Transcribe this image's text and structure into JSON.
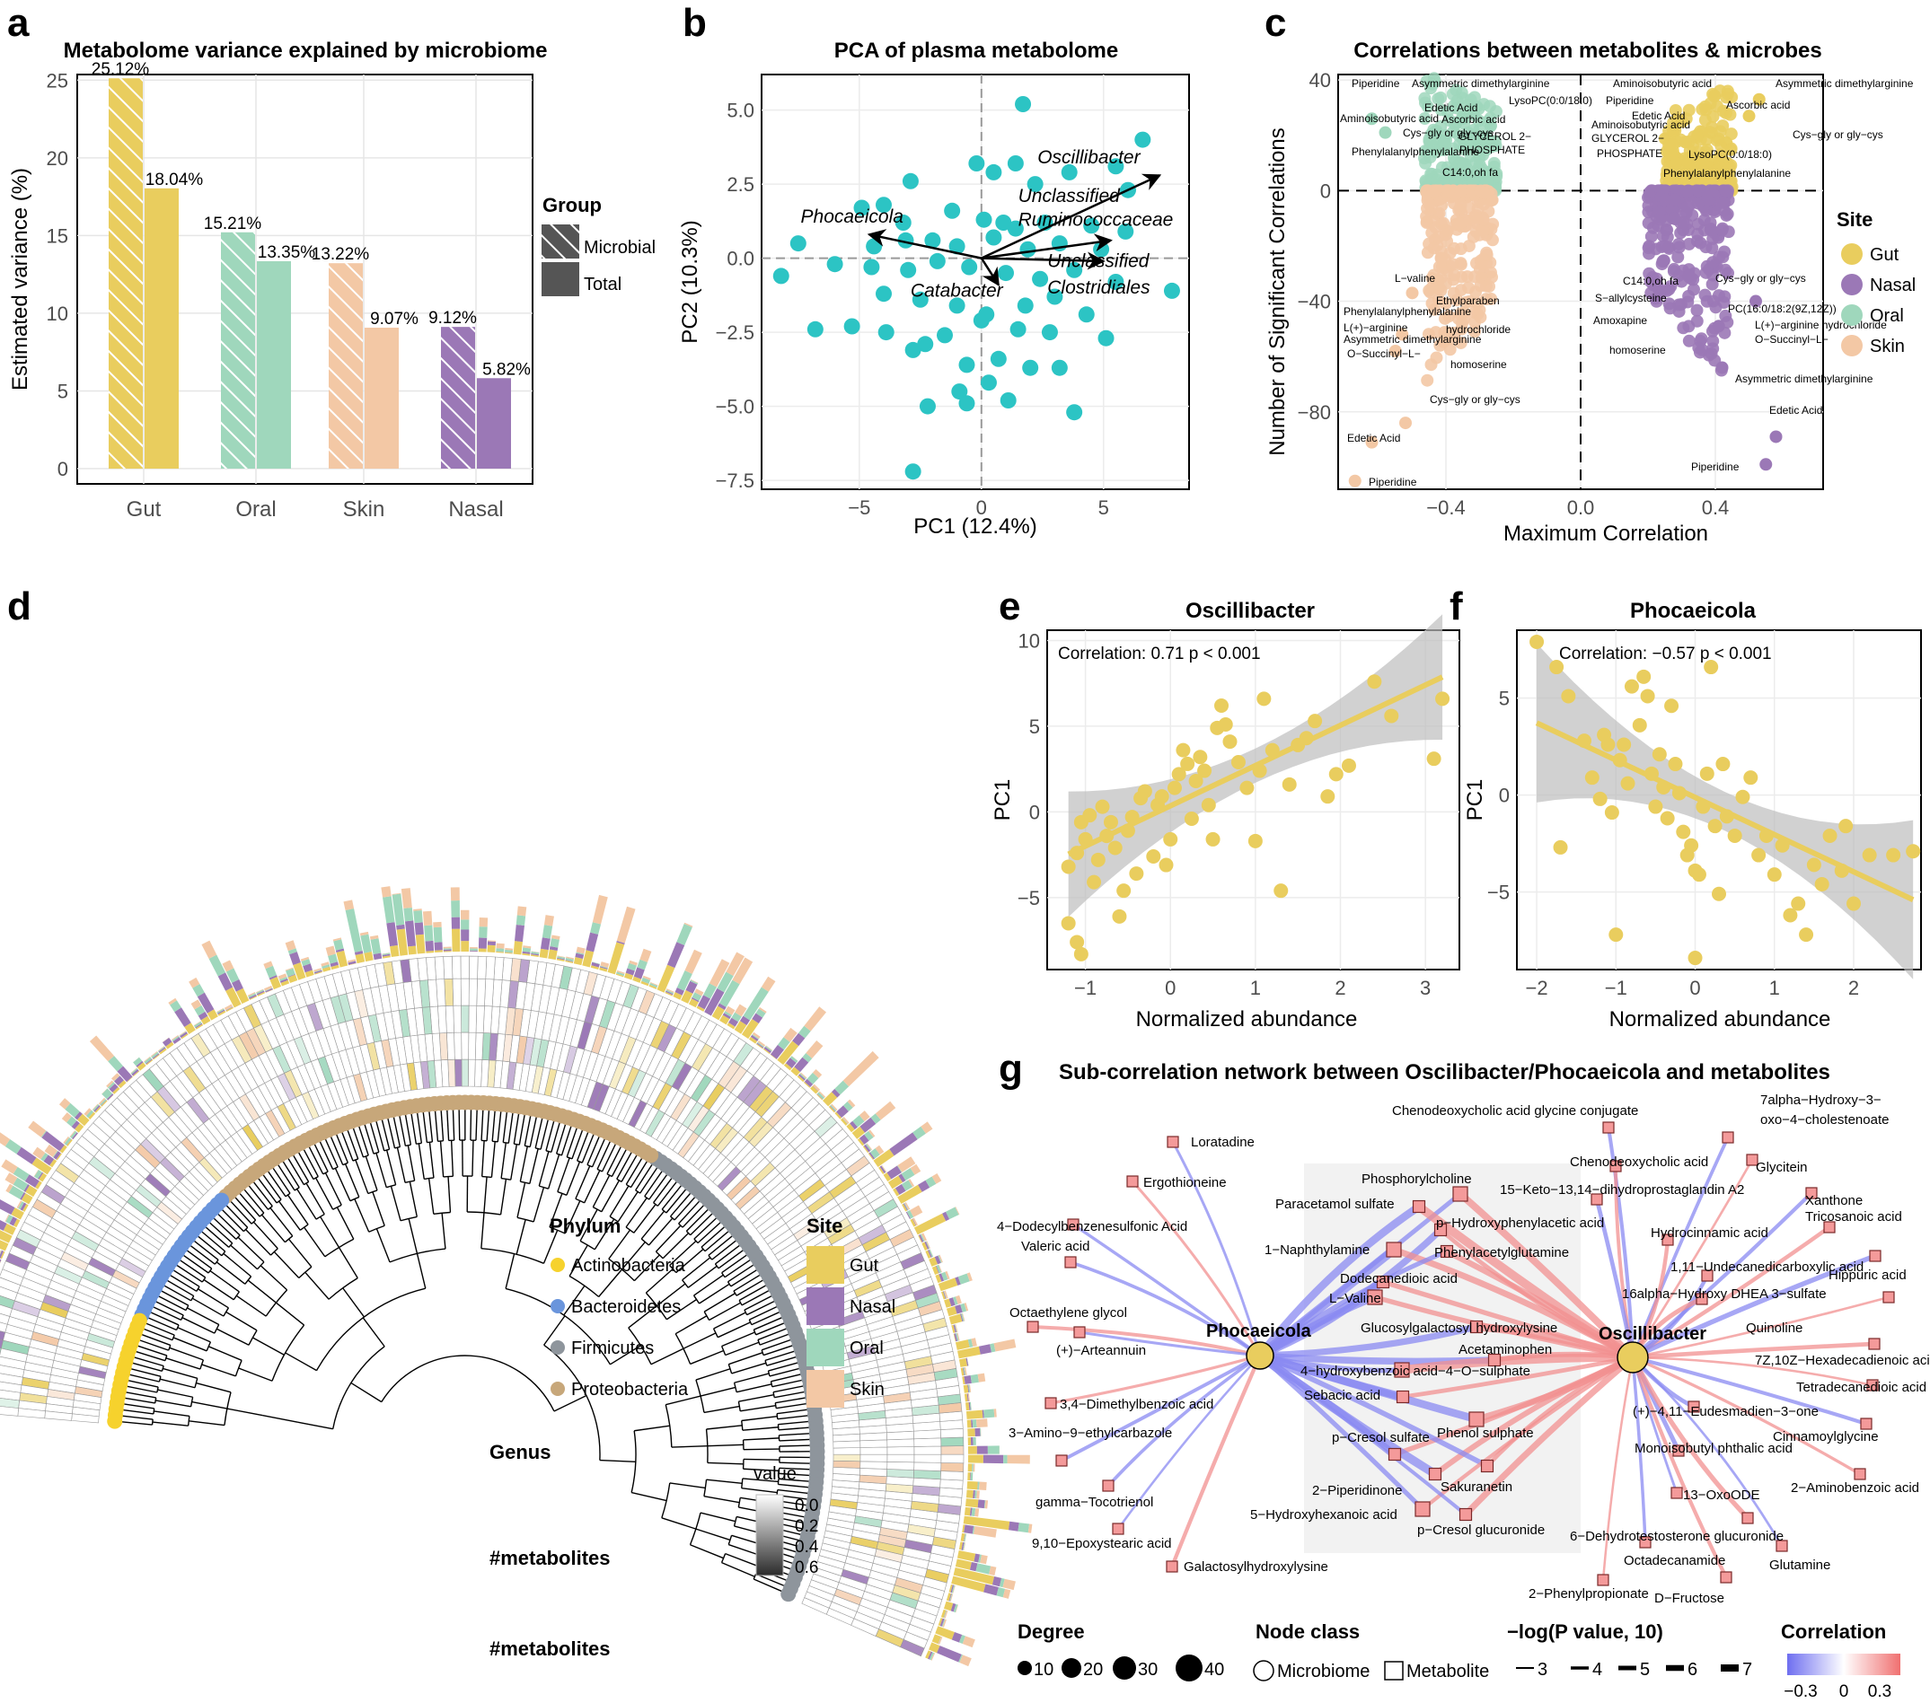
{
  "panels": {
    "a": "a",
    "b": "b",
    "c": "c",
    "d": "d",
    "e": "e",
    "f": "f",
    "g": "g"
  },
  "colors": {
    "gut": "#E9CD5E",
    "nasal": "#9B78B6",
    "oral": "#9FD7BC",
    "skin": "#F3C8A5",
    "teal": "#2CC4C4",
    "actino": "#F6D22D",
    "bacteroidetes": "#6A95DC",
    "firmicutes": "#8E959C",
    "proteobacteria": "#C7A77A"
  },
  "chart_data": [
    {
      "id": "a",
      "type": "bar",
      "title": "Metabolome variance explained by microbiome",
      "ylabel": "Estimated variance (%)",
      "xlabel": "",
      "ylim": [
        0,
        26
      ],
      "yticks": [
        "0",
        "5",
        "10",
        "15",
        "20",
        "25"
      ],
      "categories": [
        "Gut",
        "Oral",
        "Skin",
        "Nasal"
      ],
      "series": [
        {
          "name": "Microbial",
          "values": [
            25.12,
            15.21,
            13.22,
            9.12
          ],
          "labels": [
            "25.12%",
            "15.21%",
            "13.22%",
            "9.12%"
          ]
        },
        {
          "name": "Total",
          "values": [
            18.04,
            13.35,
            9.07,
            5.82
          ],
          "labels": [
            "18.04%",
            "13.35%",
            "9.07%",
            "5.82%"
          ]
        }
      ],
      "legend_title": "Group",
      "legend": [
        "Microbial",
        "Total"
      ]
    },
    {
      "id": "b",
      "type": "scatter",
      "title": "PCA of plasma metabolome",
      "xlabel": "PC1 (12.4%)",
      "ylabel": "PC2 (10.3%)",
      "xlim": [
        -9,
        8.5
      ],
      "ylim": [
        -7.8,
        6.2
      ],
      "xticks": [
        "−5",
        "0",
        "5"
      ],
      "yticks": [
        "5.0",
        "2.5",
        "0.0",
        "−2.5",
        "−5.0",
        "−7.5"
      ],
      "points": [
        [
          1.7,
          5.2
        ],
        [
          -0.2,
          3.2
        ],
        [
          0.5,
          2.9
        ],
        [
          1.4,
          3.2
        ],
        [
          2.2,
          2.5
        ],
        [
          3.6,
          2.9
        ],
        [
          5.5,
          3.1
        ],
        [
          6.6,
          4.0
        ],
        [
          6.0,
          2.3
        ],
        [
          -2.9,
          2.6
        ],
        [
          -4.0,
          1.8
        ],
        [
          -4.9,
          1.7
        ],
        [
          -3.2,
          1.2
        ],
        [
          -1.2,
          1.6
        ],
        [
          0.1,
          1.3
        ],
        [
          0.9,
          1.2
        ],
        [
          1.4,
          1.0
        ],
        [
          2.6,
          1.2
        ],
        [
          4.5,
          1.1
        ],
        [
          5.9,
          0.9
        ],
        [
          -7.5,
          0.5
        ],
        [
          -4.4,
          0.4
        ],
        [
          -3.1,
          0.6
        ],
        [
          -2.0,
          0.6
        ],
        [
          -1.0,
          0.4
        ],
        [
          0.5,
          0.7
        ],
        [
          1.9,
          0.3
        ],
        [
          3.2,
          0.5
        ],
        [
          4.9,
          0.3
        ],
        [
          -8.2,
          -0.6
        ],
        [
          -6.0,
          -0.2
        ],
        [
          -4.5,
          -0.3
        ],
        [
          -3.0,
          -0.4
        ],
        [
          -1.8,
          -0.1
        ],
        [
          -0.5,
          -0.3
        ],
        [
          1.0,
          -0.5
        ],
        [
          2.4,
          -0.7
        ],
        [
          3.8,
          -0.4
        ],
        [
          5.5,
          -0.8
        ],
        [
          7.8,
          -1.1
        ],
        [
          -4.0,
          -1.2
        ],
        [
          -2.5,
          -1.4
        ],
        [
          -1.0,
          -1.6
        ],
        [
          0.2,
          -1.9
        ],
        [
          1.8,
          -1.6
        ],
        [
          3.0,
          -1.3
        ],
        [
          4.3,
          -1.9
        ],
        [
          -6.8,
          -2.4
        ],
        [
          -5.3,
          -2.3
        ],
        [
          -3.9,
          -2.5
        ],
        [
          -2.3,
          -2.9
        ],
        [
          -1.5,
          -2.6
        ],
        [
          0.0,
          -2.1
        ],
        [
          1.5,
          -2.4
        ],
        [
          2.8,
          -2.5
        ],
        [
          5.1,
          -2.7
        ],
        [
          -2.8,
          -3.1
        ],
        [
          -0.6,
          -3.6
        ],
        [
          0.7,
          -3.4
        ],
        [
          2.0,
          -3.7
        ],
        [
          -0.9,
          -4.5
        ],
        [
          0.3,
          -4.2
        ],
        [
          1.1,
          -4.8
        ],
        [
          -0.6,
          -4.9
        ],
        [
          -2.2,
          -5.0
        ],
        [
          3.8,
          -5.2
        ],
        [
          -2.8,
          -7.2
        ],
        [
          3.2,
          -3.7
        ]
      ],
      "arrows": [
        {
          "name": "Oscillibacter",
          "end": [
            7.3,
            2.8
          ],
          "label_at": [
            6.7,
            3.1
          ]
        },
        {
          "name": "Phocaeicola",
          "end": [
            -4.6,
            0.8
          ],
          "label_at": [
            -7.2,
            1.2
          ]
        },
        {
          "name": "Unclassified Ruminococcaceae",
          "end": [
            5.3,
            0.6
          ],
          "label_at": [
            1.4,
            1.6
          ]
        },
        {
          "name": "Unclassified Clostridiales",
          "end": [
            5.0,
            -0.1
          ],
          "label_at": [
            2.6,
            -0.4
          ]
        },
        {
          "name": "Catabacter",
          "end": [
            0.7,
            -0.9
          ],
          "label_at": [
            -3.0,
            -1.2
          ]
        }
      ],
      "arrow_labels": {
        "osc": "Oscillibacter",
        "pho": "Phocaeicola",
        "rum1": "Unclassified",
        "rum2": "Ruminococcaceae",
        "clo1": "Unclassified",
        "clo2": "Clostridiales",
        "cat": "Catabacter"
      }
    },
    {
      "id": "c",
      "type": "scatter",
      "title": "Correlations between metabolites & microbes",
      "xlabel": "Maximum Correlation",
      "ylabel": "Number of Significant Correlations",
      "xlim": [
        -0.72,
        0.72
      ],
      "ylim": [
        -108,
        42
      ],
      "xticks": [
        "−0.4",
        "0.0",
        "0.4"
      ],
      "yticks": [
        "40",
        "0",
        "−40",
        "−80"
      ],
      "legend_title": "Site",
      "legend": [
        "Gut",
        "Nasal",
        "Oral",
        "Skin"
      ],
      "labels": [
        "Piperidine",
        "Asymmetric dimethylarginine",
        "LysoPC(0:0/18:0)",
        "Edetic Acid",
        "Aminoisobutyric acid",
        "Ascorbic acid",
        "Cys−gly or gly−cys",
        "GLYCEROL 2−",
        "PHOSPHATE",
        "Phenylalanylphenylalanine",
        "C14:0,oh fa",
        "L−valine",
        "Ethylparaben",
        "Phenylalanylphenylalanine",
        "L(+)−arginine",
        "hydrochloride",
        "Asymmetric dimethylarginine",
        "O−Succinyl−L−",
        "homoserine",
        "Cys−gly or gly−cys",
        "Edetic Acid",
        "Piperidine",
        "Aminoisobutyric acid",
        "Asymmetric dimethylarginine",
        "Piperidine",
        "Ascorbic acid",
        "Edetic Acid",
        "Cys−gly or gly−cys",
        "Aminoisobutyric acid",
        "GLYCEROL 2−",
        "PHOSPHATE",
        "LysoPC(0:0/18:0)",
        "Phenylalanylphenylalanine",
        "C14:0,oh fa",
        "Cys−gly or gly−cys",
        "S−allylcysteine",
        "PC(16:0/18:2(9Z,12Z))",
        "Amoxapine",
        "L(+)−arginine hydrochloride",
        "O−Succinyl−L−",
        "homoserine",
        "Asymmetric dimethylarginine",
        "Edetic Acid",
        "Piperidine",
        "Aminoisobutyric acid"
      ]
    },
    {
      "id": "e",
      "type": "scatter",
      "title": "Oscillibacter",
      "annotation": "Correlation: 0.71 p < 0.001",
      "xlabel": "Normalized abundance",
      "ylabel": "PC1",
      "xlim": [
        -1.45,
        3.4
      ],
      "ylim": [
        -9.2,
        10.6
      ],
      "xticks": [
        "−1",
        "0",
        "1",
        "2",
        "3"
      ],
      "yticks": [
        "10",
        "5",
        "0",
        "−5"
      ],
      "fit": {
        "slope": 2.35,
        "intercept": 0.35
      },
      "points": [
        [
          -1.2,
          -3.2
        ],
        [
          -1.1,
          -2.4
        ],
        [
          -1.0,
          -1.6
        ],
        [
          -1.05,
          -0.6
        ],
        [
          -0.95,
          -0.2
        ],
        [
          -1.2,
          -6.5
        ],
        [
          -1.1,
          -7.6
        ],
        [
          -1.05,
          -8.3
        ],
        [
          -0.9,
          -4.1
        ],
        [
          -0.85,
          -2.8
        ],
        [
          -0.8,
          0.3
        ],
        [
          -0.75,
          -1.4
        ],
        [
          -0.7,
          -0.6
        ],
        [
          -0.65,
          -2.1
        ],
        [
          -0.6,
          -6.1
        ],
        [
          -0.55,
          -4.6
        ],
        [
          -0.5,
          -1.1
        ],
        [
          -0.45,
          -0.3
        ],
        [
          -0.4,
          -3.6
        ],
        [
          -0.35,
          0.8
        ],
        [
          -0.3,
          1.2
        ],
        [
          -0.2,
          -2.6
        ],
        [
          -0.15,
          0.4
        ],
        [
          -0.1,
          0.9
        ],
        [
          -0.05,
          -3.1
        ],
        [
          0.0,
          -1.6
        ],
        [
          0.05,
          1.4
        ],
        [
          0.1,
          2.2
        ],
        [
          0.15,
          3.6
        ],
        [
          0.2,
          2.8
        ],
        [
          0.25,
          -0.4
        ],
        [
          0.3,
          1.8
        ],
        [
          0.35,
          3.2
        ],
        [
          0.4,
          2.4
        ],
        [
          0.45,
          0.4
        ],
        [
          0.5,
          -1.6
        ],
        [
          0.55,
          4.9
        ],
        [
          0.6,
          6.2
        ],
        [
          0.65,
          5.1
        ],
        [
          0.7,
          4.1
        ],
        [
          0.8,
          2.9
        ],
        [
          0.9,
          1.4
        ],
        [
          1.0,
          -1.7
        ],
        [
          1.05,
          2.4
        ],
        [
          1.1,
          6.6
        ],
        [
          1.2,
          3.6
        ],
        [
          1.3,
          -4.6
        ],
        [
          1.4,
          1.6
        ],
        [
          1.5,
          3.9
        ],
        [
          1.6,
          4.3
        ],
        [
          1.7,
          5.3
        ],
        [
          1.85,
          0.9
        ],
        [
          1.95,
          2.2
        ],
        [
          2.1,
          2.7
        ],
        [
          2.4,
          7.6
        ],
        [
          2.6,
          5.6
        ],
        [
          3.1,
          3.1
        ],
        [
          3.2,
          6.6
        ]
      ]
    },
    {
      "id": "f",
      "type": "scatter",
      "title": "Phocaeicola",
      "annotation": "Correlation: −0.57 p < 0.001",
      "xlabel": "Normalized abundance",
      "ylabel": "PC1",
      "xlim": [
        -2.25,
        2.85
      ],
      "ylim": [
        -9.0,
        8.5
      ],
      "xticks": [
        "−2",
        "−1",
        "0",
        "1",
        "2"
      ],
      "yticks": [
        "5",
        "0",
        "−5"
      ],
      "fit": {
        "slope": -1.92,
        "intercept": -0.12
      },
      "points": [
        [
          -2.0,
          7.9
        ],
        [
          -1.75,
          6.6
        ],
        [
          -1.6,
          5.1
        ],
        [
          -1.4,
          2.8
        ],
        [
          -1.3,
          0.9
        ],
        [
          -1.7,
          -2.7
        ],
        [
          -1.2,
          -0.2
        ],
        [
          -1.15,
          3.1
        ],
        [
          -1.1,
          2.6
        ],
        [
          -1.05,
          -0.9
        ],
        [
          -1.0,
          -7.2
        ],
        [
          -0.95,
          1.8
        ],
        [
          -0.9,
          2.6
        ],
        [
          -0.85,
          0.6
        ],
        [
          -0.8,
          5.6
        ],
        [
          -0.7,
          3.6
        ],
        [
          -0.65,
          6.1
        ],
        [
          -0.6,
          5.1
        ],
        [
          -0.55,
          1.1
        ],
        [
          -0.5,
          -0.6
        ],
        [
          -0.45,
          2.1
        ],
        [
          -0.4,
          0.4
        ],
        [
          -0.35,
          -1.2
        ],
        [
          -0.3,
          4.6
        ],
        [
          -0.25,
          1.6
        ],
        [
          -0.2,
          0.1
        ],
        [
          -0.15,
          -1.9
        ],
        [
          -0.1,
          -3.1
        ],
        [
          -0.05,
          -2.6
        ],
        [
          0.0,
          -3.9
        ],
        [
          0.05,
          -4.1
        ],
        [
          0.1,
          -0.6
        ],
        [
          0.15,
          1.1
        ],
        [
          0.2,
          6.6
        ],
        [
          0.25,
          -1.6
        ],
        [
          0.3,
          -5.1
        ],
        [
          0.35,
          1.6
        ],
        [
          0.4,
          -1.1
        ],
        [
          0.5,
          -2.1
        ],
        [
          0.6,
          -0.1
        ],
        [
          0.7,
          0.9
        ],
        [
          0.8,
          -3.1
        ],
        [
          0.9,
          -2.1
        ],
        [
          1.0,
          -4.1
        ],
        [
          1.1,
          -2.6
        ],
        [
          1.2,
          -6.2
        ],
        [
          1.3,
          -5.6
        ],
        [
          1.4,
          -7.2
        ],
        [
          1.5,
          -3.6
        ],
        [
          1.6,
          -4.6
        ],
        [
          1.7,
          -2.1
        ],
        [
          1.85,
          -3.9
        ],
        [
          2.0,
          -5.6
        ],
        [
          2.2,
          -3.1
        ],
        [
          2.5,
          -3.1
        ],
        [
          2.75,
          -2.9
        ],
        [
          0.0,
          -8.4
        ],
        [
          1.9,
          -1.6
        ]
      ]
    }
  ],
  "panel_d": {
    "phylum_title": "Phylum",
    "phyla": [
      "Actinobacteria",
      "Bacteroidetes",
      "Firmicutes",
      "Proteobacteria"
    ],
    "site_title": "Site",
    "sites": [
      "Gut",
      "Nasal",
      "Oral",
      "Skin"
    ],
    "ring_labels": [
      "Genus",
      "#metabolites",
      "#metabolites"
    ],
    "value_title": "value",
    "value_ticks": [
      "0.0",
      "0.2",
      "0.4",
      "0.6"
    ]
  },
  "panel_g": {
    "title": "Sub-correlation network between Oscilibacter/Phocaeicola and metabolites",
    "hubs": [
      "Phocaeicola",
      "Oscillibacter"
    ],
    "left_metabolites": [
      "Loratadine",
      "Ergothioneine",
      "4−Dodecylbenzenesulfonic Acid",
      "Valeric acid",
      "Octaethylene glycol",
      "(+)−Arteannuin",
      "3,4−Dimethylbenzoic acid",
      "3−Amino−9−ethylcarbazole",
      "gamma−Tocotrienol",
      "9,10−Epoxystearic acid",
      "Galactosylhydroxylysine"
    ],
    "center_metabolites": [
      "Phosphorylcholine",
      "Paracetamol sulfate",
      "p−Hydroxyphenylacetic acid",
      "1−Naphthylamine",
      "Phenylacetylglutamine",
      "Dodecanedioic acid",
      "L−Valine",
      "Glucosylgalactosyl hydroxylysine",
      "Acetaminophen",
      "4−hydroxybenzoic acid−4−O−sulphate",
      "Sebacic acid",
      "p−Cresol sulfate",
      "Phenol sulphate",
      "2−Piperidinone",
      "Sakuranetin",
      "5−Hydroxyhexanoic acid",
      "p−Cresol glucuronide"
    ],
    "right_metabolites": [
      "Chenodeoxycholic acid glycine conjugate",
      "7alpha−Hydroxy−3−",
      "oxo−4−cholestenoate",
      "Chenodeoxycholic acid",
      "Glycitein",
      "15−Keto−13,14−dihydroprostaglandin A2",
      "Xanthone",
      "Tricosanoic acid",
      "Hydrocinnamic acid",
      "1,11−Undecanedicarboxylic acid",
      "Hippuric acid",
      "16alpha−Hydroxy DHEA 3−sulfate",
      "Quinoline",
      "7Z,10Z−Hexadecadienoic acid",
      "Tetradecanedioic acid",
      "(+)−4,11−Eudesmadien−3−one",
      "Cinnamoylglycine",
      "Monoisobutyl phthalic acid",
      "2−Aminobenzoic acid",
      "13−OxoODE",
      "6−Dehydrotestosterone glucuronide",
      "Octadecanamide",
      "Glutamine",
      "2−Phenylpropionate",
      "D−Fructose"
    ],
    "legend": {
      "degree_title": "Degree",
      "degree": [
        "10",
        "20",
        "30",
        "40"
      ],
      "class_title": "Node class",
      "classes": [
        "Microbiome",
        "Metabolite"
      ],
      "p_title": "−log(P value, 10)",
      "p": [
        "3",
        "4",
        "5",
        "6",
        "7"
      ],
      "corr_title": "Correlation",
      "corr_ticks": [
        "−0.3",
        "0",
        "0.3"
      ]
    }
  }
}
